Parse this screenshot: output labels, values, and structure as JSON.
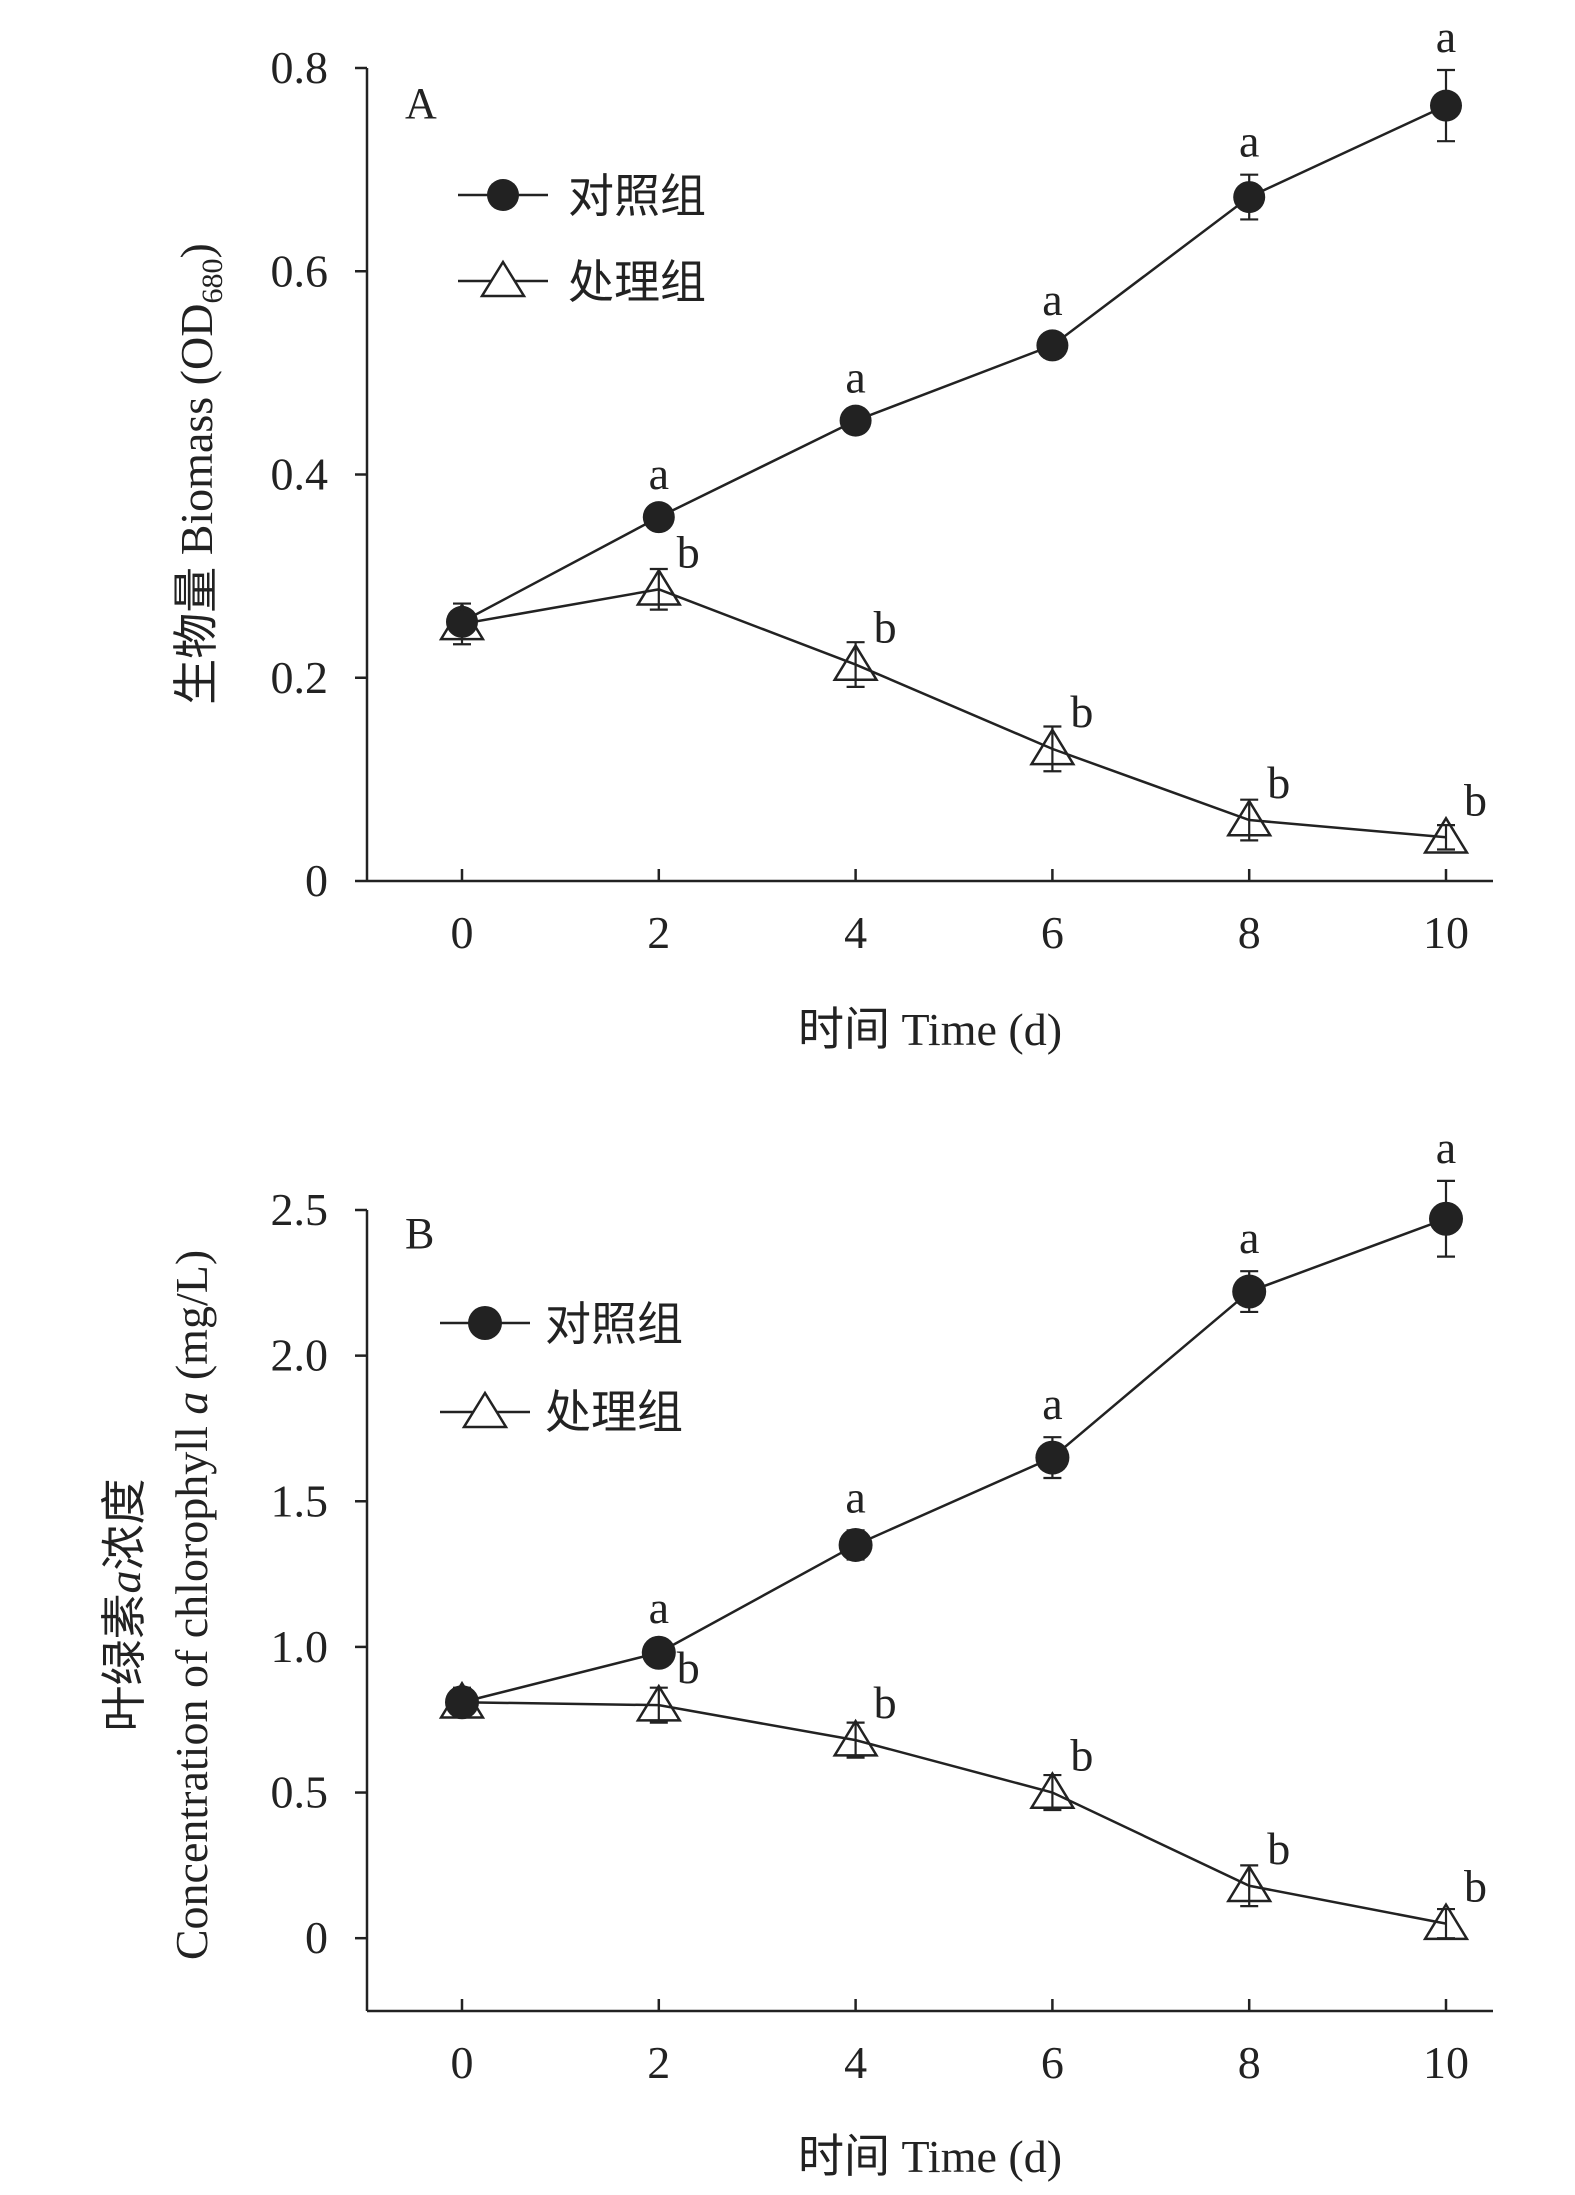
{
  "chart_data": [
    {
      "type": "line",
      "panel_label": "A",
      "title": "",
      "xlabel": "时间 Time (d)",
      "ylabel": "生物量 Biomass (OD",
      "ylabel_subscript": "680",
      "ylabel_suffix": ")",
      "x": [
        0,
        2,
        4,
        6,
        8,
        10
      ],
      "xticks": [
        "0",
        "2",
        "4",
        "6",
        "8",
        "10"
      ],
      "xlim": [
        -1,
        10.7
      ],
      "ylim": [
        0,
        0.8
      ],
      "yticks": [
        "0",
        "0.2",
        "0.4",
        "0.6",
        "0.8"
      ],
      "ytick_values": [
        0,
        0.2,
        0.4,
        0.6,
        0.8
      ],
      "legend_position": "top-left",
      "series": [
        {
          "name": "对照组",
          "marker": "filled-circle",
          "values": [
            0.255,
            0.358,
            0.453,
            0.527,
            0.673,
            0.763
          ],
          "errors": [
            0.01,
            0.01,
            0.01,
            0.012,
            0.022,
            0.035
          ],
          "labels": [
            "",
            "a",
            "a",
            "a",
            "a",
            "a"
          ]
        },
        {
          "name": "处理组",
          "marker": "open-triangle",
          "values": [
            0.253,
            0.287,
            0.213,
            0.13,
            0.06,
            0.043
          ],
          "errors": [
            0.02,
            0.02,
            0.022,
            0.022,
            0.02,
            0.012
          ],
          "labels": [
            "",
            "b",
            "b",
            "b",
            "b",
            "b"
          ]
        }
      ]
    },
    {
      "type": "line",
      "panel_label": "B",
      "title": "",
      "xlabel": "时间 Time (d)",
      "ylabel": "叶绿素",
      "ylabel_italic": "a",
      "ylabel_suffix": "浓度",
      "ylabel_line2": "Concentration of  chlorophyll ",
      "ylabel_line2_italic": "a",
      "ylabel_line2_suffix": " (mg/L)",
      "x": [
        0,
        2,
        4,
        6,
        8,
        10
      ],
      "xticks": [
        "0",
        "2",
        "4",
        "6",
        "8",
        "10"
      ],
      "xlim": [
        -1,
        10.7
      ],
      "ylim": [
        -0.25,
        2.5
      ],
      "yticks": [
        "0",
        "0.5",
        "1.0",
        "1.5",
        "2.0",
        "2.5"
      ],
      "ytick_values": [
        0,
        0.5,
        1.0,
        1.5,
        2.0,
        2.5
      ],
      "legend_position": "top-left",
      "series": [
        {
          "name": "对照组",
          "marker": "filled-circle",
          "values": [
            0.81,
            0.98,
            1.35,
            1.65,
            2.22,
            2.47
          ],
          "errors": [
            0.04,
            0.04,
            0.05,
            0.07,
            0.07,
            0.13
          ],
          "labels": [
            "",
            "a",
            "a",
            "a",
            "a",
            "a"
          ]
        },
        {
          "name": "处理组",
          "marker": "open-triangle",
          "values": [
            0.81,
            0.8,
            0.68,
            0.5,
            0.18,
            0.05
          ],
          "errors": [
            0.05,
            0.06,
            0.06,
            0.06,
            0.07,
            0.05
          ],
          "labels": [
            "",
            "b",
            "b",
            "b",
            "b",
            "b"
          ]
        }
      ]
    }
  ]
}
